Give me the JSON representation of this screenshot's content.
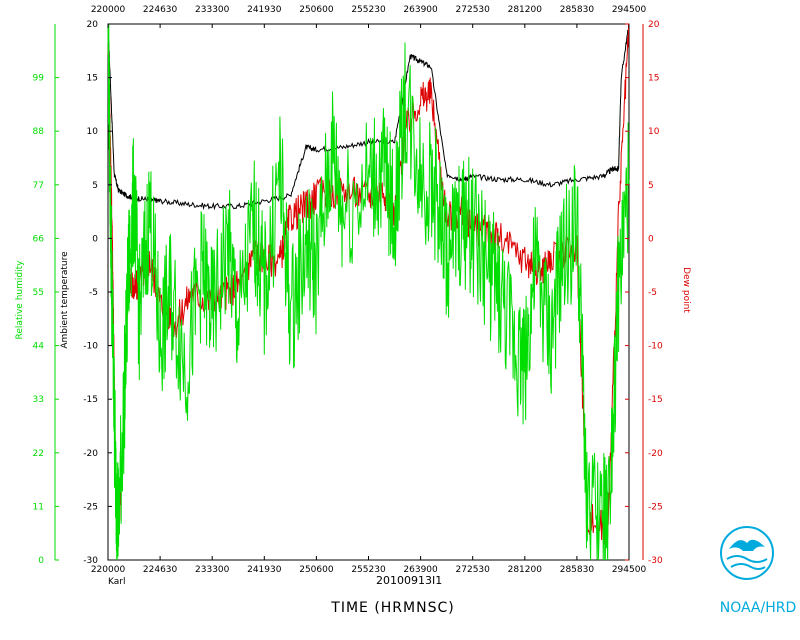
{
  "chart_data": {
    "type": "line",
    "x_axis": {
      "label": "TIME (HRMNSC)",
      "ticks": [
        "220000",
        "224630",
        "233300",
        "241930",
        "250600",
        "255230",
        "263900",
        "272530",
        "281200",
        "285830",
        "294500"
      ],
      "range": [
        0,
        10
      ]
    },
    "storm_label": "Karl",
    "flight_id": "20100913I1",
    "left_axis_rh": {
      "label": "Relative humidity",
      "ticks": [
        "0",
        "11",
        "22",
        "33",
        "44",
        "55",
        "66",
        "77",
        "88",
        "99"
      ],
      "range": [
        0,
        110
      ],
      "color": "#00dd00"
    },
    "left_axis_temp": {
      "label": "Ambient temperature",
      "ticks": [
        "-30",
        "-25",
        "-20",
        "-15",
        "-10",
        "-5",
        "0",
        "5",
        "10",
        "15",
        "20"
      ],
      "range": [
        -30,
        20
      ],
      "color": "#000000"
    },
    "right_axis_dew": {
      "label": "Dew point",
      "ticks": [
        "-30",
        "-25",
        "-20",
        "-15",
        "-10",
        "-5",
        "0",
        "5",
        "10",
        "15",
        "20"
      ],
      "range": [
        -30,
        20
      ],
      "color": "#dd0000"
    },
    "series": [
      {
        "name": "Ambient temperature",
        "axis": "temp",
        "color": "#000000",
        "x": [
          0.0,
          0.05,
          0.12,
          0.2,
          0.35,
          0.5,
          0.8,
          1.0,
          1.5,
          2.0,
          2.5,
          3.0,
          3.5,
          3.8,
          4.0,
          4.5,
          5.0,
          5.5,
          5.8,
          6.0,
          6.2,
          6.5,
          6.8,
          7.0,
          7.5,
          8.0,
          8.5,
          9.0,
          9.5,
          9.7,
          9.8,
          9.85,
          10.0
        ],
        "y": [
          20,
          14,
          6,
          4.5,
          4.0,
          3.8,
          3.6,
          3.5,
          3.2,
          3.0,
          3.0,
          3.5,
          4.0,
          8.5,
          8.3,
          8.5,
          9.0,
          9.0,
          17.0,
          16.5,
          16.0,
          6.0,
          5.5,
          5.8,
          5.5,
          5.5,
          5.0,
          5.5,
          5.8,
          6.5,
          6.5,
          15.0,
          20.0
        ]
      },
      {
        "name": "Dew point",
        "axis": "dew",
        "color": "#dd0000",
        "x": [
          0.0,
          0.05,
          0.1,
          0.15,
          0.2,
          0.3,
          0.4,
          0.5,
          0.6,
          0.8,
          1.0,
          1.3,
          1.6,
          2.0,
          2.3,
          2.6,
          2.8,
          3.0,
          3.3,
          3.5,
          3.8,
          4.0,
          4.5,
          5.0,
          5.3,
          5.5,
          5.7,
          6.0,
          6.2,
          6.5,
          6.8,
          7.0,
          7.3,
          7.5,
          8.0,
          8.3,
          8.5,
          9.0,
          9.2,
          9.5,
          9.6,
          9.8,
          10.0
        ],
        "y": [
          20,
          8,
          -5,
          -25,
          -28,
          -18,
          -3,
          -5,
          -4,
          -2,
          -6,
          -8,
          -5,
          -6,
          -5,
          -4,
          -1,
          -2,
          -2,
          2,
          3,
          4,
          4.5,
          4.0,
          4.5,
          2.0,
          10.0,
          13.0,
          13.5,
          2.0,
          2.5,
          1.0,
          0.5,
          0.0,
          -2.0,
          -3.0,
          -2.0,
          -1.0,
          -26.0,
          -27.0,
          -27.0,
          2.0,
          20.0
        ]
      },
      {
        "name": "Relative humidity",
        "axis": "rh",
        "color": "#00dd00",
        "x": [
          0.0,
          0.05,
          0.1,
          0.15,
          0.2,
          0.3,
          0.4,
          0.5,
          0.6,
          0.8,
          1.0,
          1.2,
          1.5,
          1.8,
          2.0,
          2.3,
          2.5,
          2.8,
          3.0,
          3.3,
          3.5,
          3.8,
          4.0,
          4.3,
          4.5,
          5.0,
          5.3,
          5.5,
          5.7,
          6.0,
          6.3,
          6.5,
          6.8,
          7.0,
          7.3,
          7.5,
          7.8,
          8.0,
          8.2,
          8.5,
          8.7,
          9.0,
          9.2,
          9.5,
          9.6,
          9.8,
          10.0
        ],
        "y": [
          110,
          70,
          40,
          15,
          8,
          30,
          60,
          75,
          50,
          72,
          45,
          55,
          40,
          60,
          50,
          65,
          48,
          70,
          55,
          80,
          50,
          65,
          60,
          85,
          72,
          78,
          80,
          70,
          95,
          80,
          75,
          62,
          70,
          68,
          60,
          55,
          45,
          40,
          60,
          45,
          60,
          70,
          10,
          8,
          10,
          55,
          78
        ]
      }
    ],
    "credit": "NOAA/HRD"
  }
}
